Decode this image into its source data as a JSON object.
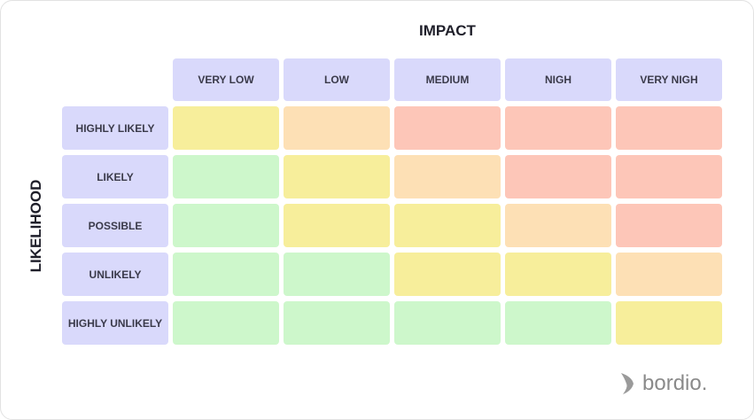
{
  "header": {
    "title": "IMPACT",
    "side_title": "LIKELIHOOD"
  },
  "columns": [
    "VERY LOW",
    "LOW",
    "MEDIUM",
    "NIGH",
    "VERY NIGH"
  ],
  "rows": [
    {
      "label": "HIGHLY LIKELY",
      "colors": [
        "#f7ee9b",
        "#fde0b5",
        "#fdc6b8",
        "#fdc6b8",
        "#fdc6b8"
      ]
    },
    {
      "label": "LIKELY",
      "colors": [
        "#cdf7cb",
        "#f7ee9b",
        "#fde0b5",
        "#fdc6b8",
        "#fdc6b8"
      ]
    },
    {
      "label": "POSSIBLE",
      "colors": [
        "#cdf7cb",
        "#f7ee9b",
        "#f7ee9b",
        "#fde0b5",
        "#fdc6b8"
      ]
    },
    {
      "label": "UNLIKELY",
      "colors": [
        "#cdf7cb",
        "#cdf7cb",
        "#f7ee9b",
        "#f7ee9b",
        "#fde0b5"
      ]
    },
    {
      "label": "HIGHLY UNLIKELY",
      "colors": [
        "#cdf7cb",
        "#cdf7cb",
        "#cdf7cb",
        "#cdf7cb",
        "#f7ee9b"
      ]
    }
  ],
  "header_color": "#d9d9fb",
  "logo": {
    "text": "bordio."
  }
}
